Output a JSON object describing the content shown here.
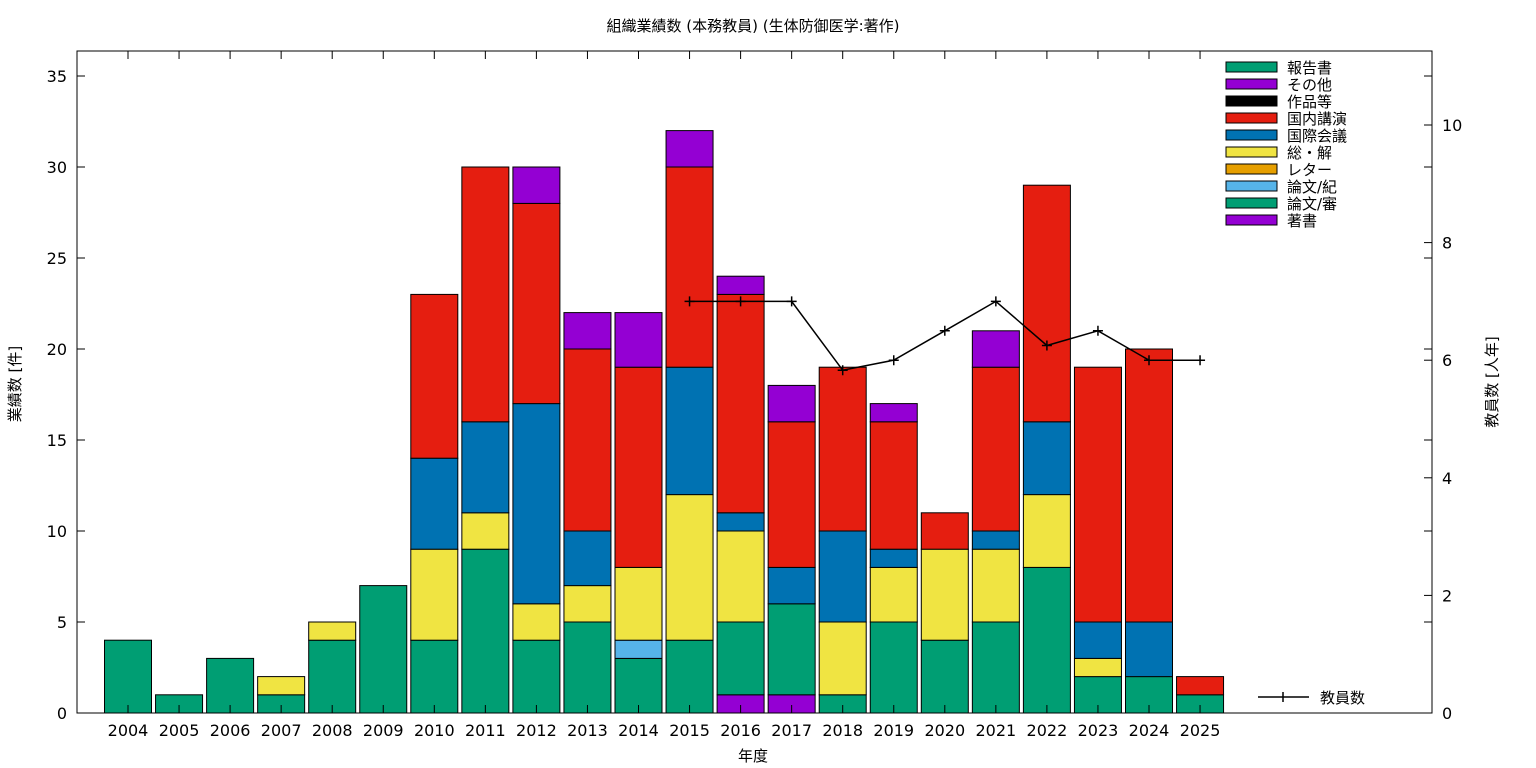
{
  "chart_data": {
    "type": "bar",
    "stacked": true,
    "title": "組織業績数 (本務教員) (生体防御医学:著作)",
    "xlabel": "年度",
    "ylabel": "業績数 [件]",
    "y2label": "教員数 [人年]",
    "ylim": [
      0,
      35
    ],
    "y2lim": [
      0,
      10
    ],
    "yticks": [
      0,
      5,
      10,
      15,
      20,
      25,
      30,
      35
    ],
    "y2ticks": [
      0,
      2,
      4,
      6,
      8,
      10
    ],
    "legend_position": "top-right",
    "categories": [
      "2004",
      "2005",
      "2006",
      "2007",
      "2008",
      "2009",
      "2010",
      "2011",
      "2012",
      "2013",
      "2014",
      "2015",
      "2016",
      "2017",
      "2018",
      "2019",
      "2020",
      "2021",
      "2022",
      "2023",
      "2024",
      "2025"
    ],
    "series": [
      {
        "name": "著書",
        "color": "#9400D3",
        "values": [
          0,
          0,
          0,
          0,
          0,
          0,
          0,
          0,
          0,
          0,
          0,
          0,
          1,
          1,
          0,
          0,
          0,
          0,
          0,
          0,
          0,
          0
        ]
      },
      {
        "name": "論文/審",
        "color": "#009E73",
        "values": [
          4,
          1,
          3,
          1,
          4,
          7,
          4,
          9,
          4,
          5,
          3,
          4,
          4,
          5,
          1,
          5,
          4,
          5,
          8,
          2,
          2,
          1
        ]
      },
      {
        "name": "論文/紀",
        "color": "#56B4E9",
        "values": [
          0,
          0,
          0,
          0,
          0,
          0,
          0,
          0,
          0,
          0,
          1,
          0,
          0,
          0,
          0,
          0,
          0,
          0,
          0,
          0,
          0,
          0
        ]
      },
      {
        "name": "レター",
        "color": "#E69F00",
        "values": [
          0,
          0,
          0,
          0,
          0,
          0,
          0,
          0,
          0,
          0,
          0,
          0,
          0,
          0,
          0,
          0,
          0,
          0,
          0,
          0,
          0,
          0
        ]
      },
      {
        "name": "総・解",
        "color": "#F0E442",
        "values": [
          0,
          0,
          0,
          1,
          1,
          0,
          5,
          2,
          2,
          2,
          4,
          8,
          5,
          0,
          4,
          3,
          5,
          4,
          4,
          1,
          0,
          0
        ]
      },
      {
        "name": "国際会議",
        "color": "#0072B2",
        "values": [
          0,
          0,
          0,
          0,
          0,
          0,
          5,
          5,
          11,
          3,
          0,
          7,
          1,
          2,
          5,
          1,
          0,
          1,
          4,
          2,
          3,
          0
        ]
      },
      {
        "name": "国内講演",
        "color": "#E51E10",
        "values": [
          0,
          0,
          0,
          0,
          0,
          0,
          9,
          14,
          11,
          10,
          11,
          11,
          12,
          8,
          9,
          7,
          2,
          9,
          13,
          14,
          15,
          1
        ]
      },
      {
        "name": "作品等",
        "color": "#000000",
        "values": [
          0,
          0,
          0,
          0,
          0,
          0,
          0,
          0,
          0,
          0,
          0,
          0,
          0,
          0,
          0,
          0,
          0,
          0,
          0,
          0,
          0,
          0
        ]
      },
      {
        "name": "その他",
        "color": "#9400D3",
        "values": [
          0,
          0,
          0,
          0,
          0,
          0,
          0,
          0,
          2,
          2,
          3,
          2,
          1,
          2,
          0,
          1,
          0,
          2,
          0,
          0,
          0,
          0
        ]
      },
      {
        "name": "報告書",
        "color": "#009E73",
        "values": [
          0,
          0,
          0,
          0,
          0,
          0,
          0,
          0,
          0,
          0,
          0,
          0,
          0,
          0,
          0,
          0,
          0,
          0,
          0,
          0,
          0,
          0
        ]
      }
    ],
    "line_series": {
      "name": "教員数",
      "axis": "y2",
      "color": "#000000",
      "x": [
        "2015",
        "2016",
        "2017",
        "2018",
        "2019",
        "2020",
        "2021",
        "2022",
        "2023",
        "2024",
        "2025"
      ],
      "values": [
        7,
        7,
        7,
        5.83,
        6,
        6.5,
        7,
        6.25,
        6.5,
        6,
        6
      ]
    },
    "legend_order": [
      "報告書",
      "その他",
      "作品等",
      "国内講演",
      "国際会議",
      "総・解",
      "レター",
      "論文/紀",
      "論文/審",
      "著書"
    ]
  }
}
